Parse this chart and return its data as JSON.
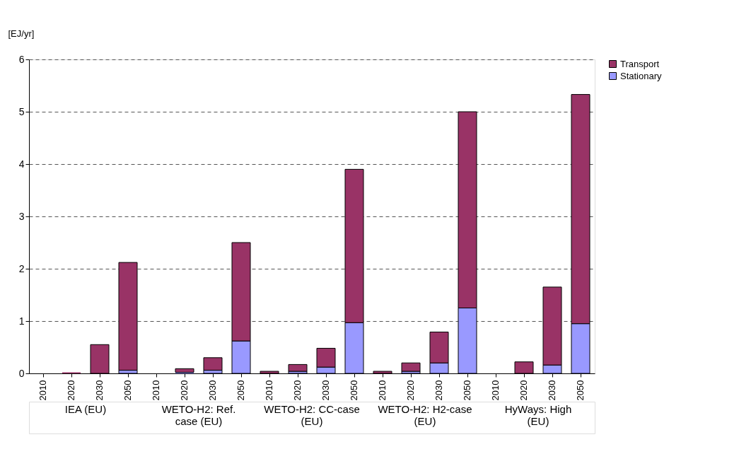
{
  "chart_data": {
    "type": "bar",
    "stacked": true,
    "ylabel": "[EJ/yr]",
    "categories": [
      "2010",
      "2020",
      "2030",
      "2050",
      "2010",
      "2020",
      "2030",
      "2050",
      "2010",
      "2020",
      "2030",
      "2050",
      "2010",
      "2020",
      "2030",
      "2050",
      "2010",
      "2020",
      "2030",
      "2050"
    ],
    "annotations": [
      "IEA (EU)",
      "WETO-H2: Ref. case (EU)",
      "WETO-H2: CC-case (EU)",
      "WETO-H2: H2-case (EU)",
      "HyWays: High (EU)"
    ],
    "series": [
      {
        "name": "Stationary",
        "color": "#9999ff",
        "values": [
          0,
          0,
          null,
          0.06,
          0,
          0.02,
          0.06,
          0.62,
          0,
          0.04,
          0.12,
          0.97,
          0,
          0.04,
          0.2,
          1.25,
          0,
          null,
          0.16,
          0.95
        ]
      },
      {
        "name": "Transport",
        "color": "#993366",
        "values": [
          0,
          0.02,
          0.55,
          2.06,
          0,
          0.07,
          0.24,
          1.88,
          0.04,
          0.13,
          0.36,
          2.93,
          0.04,
          0.16,
          0.59,
          3.75,
          0,
          0.22,
          1.49,
          4.38
        ]
      }
    ],
    "ylim": [
      0,
      6
    ],
    "yticks": [
      0,
      1,
      2,
      3,
      4,
      5,
      6
    ],
    "grid": "y",
    "legend": "right"
  }
}
